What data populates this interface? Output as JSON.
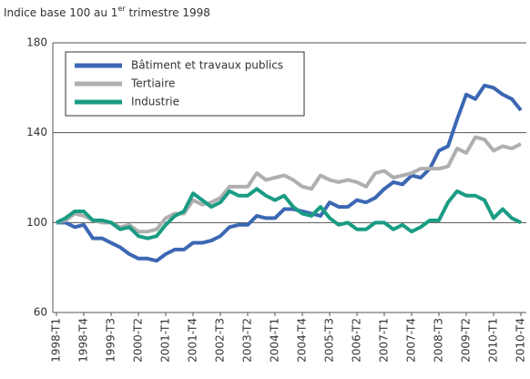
{
  "chart_data": {
    "type": "line",
    "title": "Indice base 100 au 1",
    "title_superscript": "er",
    "title_end": " trimestre 1998",
    "categories": [
      "1998-T1",
      null,
      null,
      "1998-T4",
      null,
      null,
      "1999-T3",
      null,
      null,
      "2000-T2",
      null,
      null,
      "2001-T1",
      null,
      null,
      "2001-T4",
      null,
      null,
      "2002-T3",
      null,
      null,
      "2003-T2",
      null,
      null,
      "2004-T1",
      null,
      null,
      "2004-T4",
      null,
      null,
      "2005-T3",
      null,
      null,
      "2006-T2",
      null,
      null,
      "2007-T1",
      null,
      null,
      "2007-T4",
      null,
      null,
      "2008-T3",
      null,
      null,
      "2009-T2",
      null,
      null,
      "2010-T1",
      null,
      null,
      "2010-T4"
    ],
    "series": [
      {
        "name": "Bâtiment et travaux publics",
        "color": "#3b67b3",
        "values": [
          100,
          100,
          98,
          99,
          93,
          93,
          91,
          89,
          86,
          84,
          84,
          83,
          86,
          88,
          88,
          91,
          91,
          92,
          94,
          98,
          99,
          99,
          103,
          102,
          102,
          106,
          106,
          105,
          104,
          103,
          109,
          107,
          107,
          110,
          109,
          111,
          115,
          118,
          117,
          121,
          120,
          124,
          132,
          134,
          146,
          157,
          155,
          161,
          160,
          157,
          155,
          150
        ]
      },
      {
        "name": "Tertiaire",
        "color": "#afafaf",
        "values": [
          100,
          101,
          104,
          103,
          101,
          100,
          100,
          98,
          99,
          96,
          96,
          97,
          102,
          104,
          104,
          110,
          108,
          109,
          111,
          116,
          116,
          116,
          122,
          119,
          120,
          121,
          119,
          116,
          115,
          121,
          119,
          118,
          119,
          118,
          116,
          122,
          123,
          120,
          121,
          122,
          124,
          124,
          124,
          125,
          133,
          131,
          138,
          137,
          132,
          134,
          133,
          135
        ]
      },
      {
        "name": "Industrie",
        "color": "#1a9c84",
        "values": [
          100,
          102,
          105,
          105,
          101,
          101,
          100,
          97,
          98,
          94,
          93,
          94,
          99,
          103,
          105,
          113,
          110,
          107,
          109,
          114,
          112,
          112,
          115,
          112,
          110,
          112,
          107,
          104,
          103,
          107,
          102,
          99,
          100,
          97,
          97,
          100,
          100,
          97,
          99,
          96,
          98,
          101,
          101,
          109,
          114,
          112,
          112,
          110,
          102,
          106,
          102,
          100
        ]
      }
    ],
    "ylim": [
      60,
      180
    ],
    "yticks": [
      60,
      100,
      140,
      180
    ],
    "grid": true,
    "legend": "upper left"
  }
}
